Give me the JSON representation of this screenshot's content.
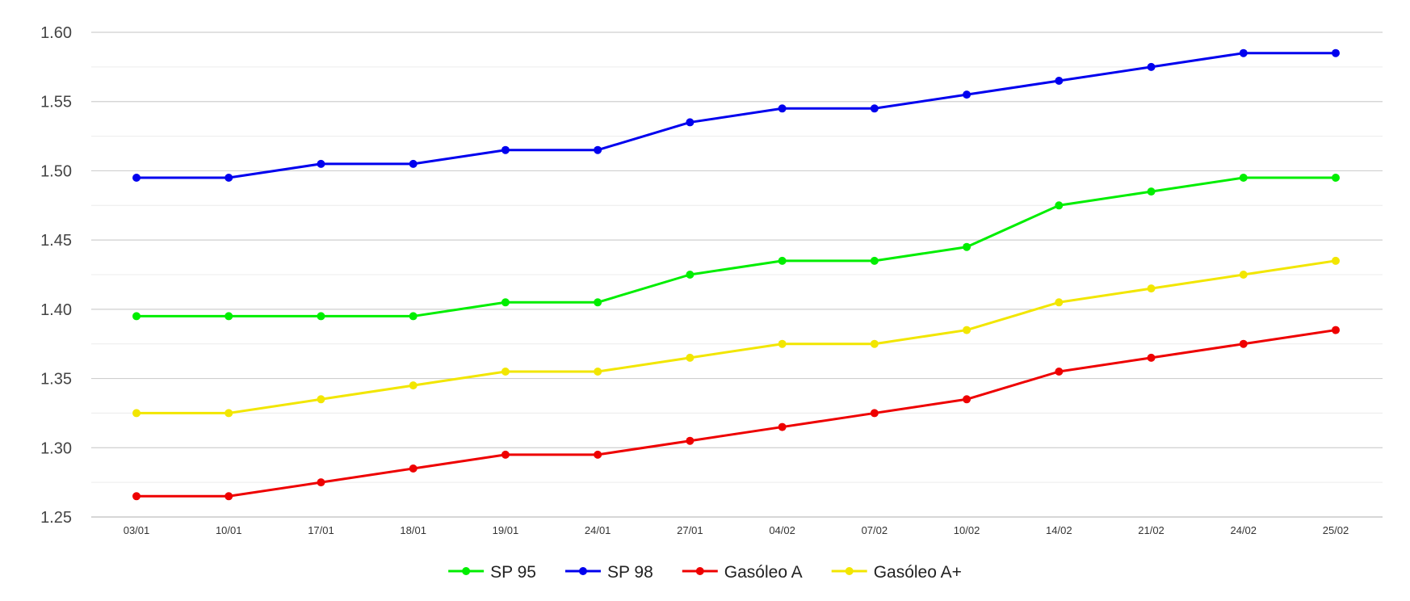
{
  "chart_data": {
    "type": "line",
    "title": "",
    "xlabel": "",
    "ylabel": "",
    "x": [
      "03/01",
      "10/01",
      "17/01",
      "18/01",
      "19/01",
      "24/01",
      "27/01",
      "04/02",
      "07/02",
      "10/02",
      "14/02",
      "21/02",
      "24/02",
      "25/02"
    ],
    "ylim": [
      1.25,
      1.6
    ],
    "yticks": [
      "1.25",
      "1.30",
      "1.35",
      "1.40",
      "1.45",
      "1.50",
      "1.55",
      "1.60"
    ],
    "grid": true,
    "legend_position": "bottom",
    "series": [
      {
        "name": "SP 95",
        "color": "#00ee00",
        "values": [
          1.395,
          1.395,
          1.395,
          1.395,
          1.405,
          1.405,
          1.425,
          1.435,
          1.435,
          1.445,
          1.475,
          1.485,
          1.495,
          1.495
        ]
      },
      {
        "name": "SP 98",
        "color": "#0000ee",
        "values": [
          1.495,
          1.495,
          1.505,
          1.505,
          1.515,
          1.515,
          1.535,
          1.545,
          1.545,
          1.555,
          1.565,
          1.575,
          1.585,
          1.585
        ]
      },
      {
        "name": "Gasóleo A",
        "color": "#ee0000",
        "values": [
          1.265,
          1.265,
          1.275,
          1.285,
          1.295,
          1.295,
          1.305,
          1.315,
          1.325,
          1.335,
          1.355,
          1.365,
          1.375,
          1.385
        ]
      },
      {
        "name": "Gasóleo A+",
        "color": "#f2e600",
        "values": [
          1.325,
          1.325,
          1.335,
          1.345,
          1.355,
          1.355,
          1.365,
          1.375,
          1.375,
          1.385,
          1.405,
          1.415,
          1.425,
          1.435
        ]
      }
    ]
  }
}
